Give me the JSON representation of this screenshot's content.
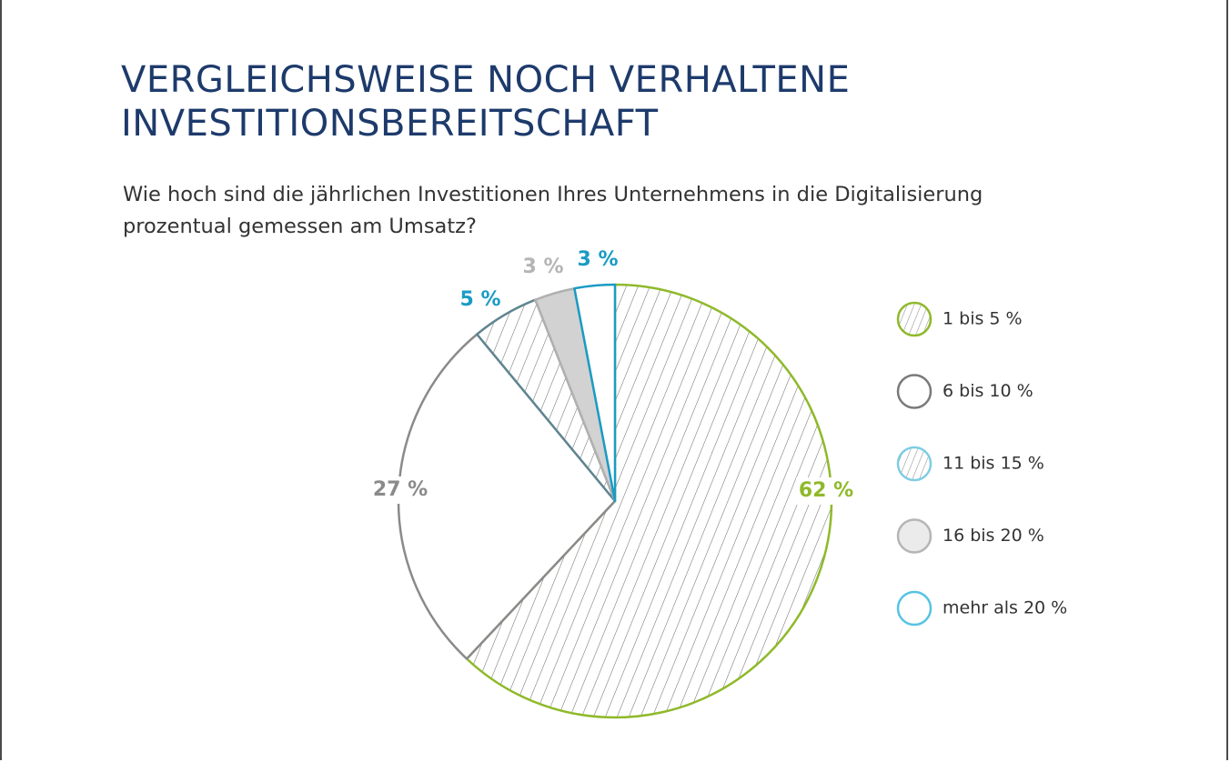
{
  "header": {
    "title_line1": "VERGLEICHSWEISE NOCH VERHALTENE",
    "title_line2": "INVESTITIONSBEREITSCHAFT",
    "subtitle_line1": "Wie hoch sind die jährlichen Investitionen Ihres Unternehmens in die Digitalisierung",
    "subtitle_line2": "prozentual gemessen am Umsatz?"
  },
  "chart_data": {
    "type": "pie",
    "start": "top, clockwise",
    "slices": [
      {
        "label": "1 bis 5 %",
        "value": 62,
        "value_label": "62 %",
        "stroke": "#8fb92a",
        "fill": "hatch",
        "label_color": "#8fb92a"
      },
      {
        "label": "6 bis 10 %",
        "value": 27,
        "value_label": "27 %",
        "stroke": "#8a8a8a",
        "fill": "#ffffff",
        "label_color": "#8a8a8a"
      },
      {
        "label": "11 bis 15 %",
        "value": 5,
        "value_label": "5 %",
        "stroke": "#5f8590",
        "fill": "hatch",
        "label_color": "#1a9bc4"
      },
      {
        "label": "16 bis 20 %",
        "value": 3,
        "value_label": "3 %",
        "stroke": "#b0b0b0",
        "fill": "#d2d2d2",
        "label_color": "#b5b5b5"
      },
      {
        "label": "mehr als 20 %",
        "value": 3,
        "value_label": "3 %",
        "stroke": "#1a9bc4",
        "fill": "#ffffff",
        "label_color": "#1a9bc4"
      }
    ],
    "legend": [
      {
        "label": "1 bis 5 %",
        "stroke": "#8fb92a",
        "fill": "hatch"
      },
      {
        "label": "6 bis 10 %",
        "stroke": "#7a7a7a",
        "fill": "#ffffff"
      },
      {
        "label": "11 bis 15 %",
        "stroke": "#7fcde3",
        "fill": "hatch"
      },
      {
        "label": "16 bis 20 %",
        "stroke": "#b5b5b5",
        "fill": "#ebebeb"
      },
      {
        "label": "mehr als 20 %",
        "stroke": "#57c3e3",
        "fill": "#ffffff"
      }
    ],
    "legend_position": "right"
  }
}
